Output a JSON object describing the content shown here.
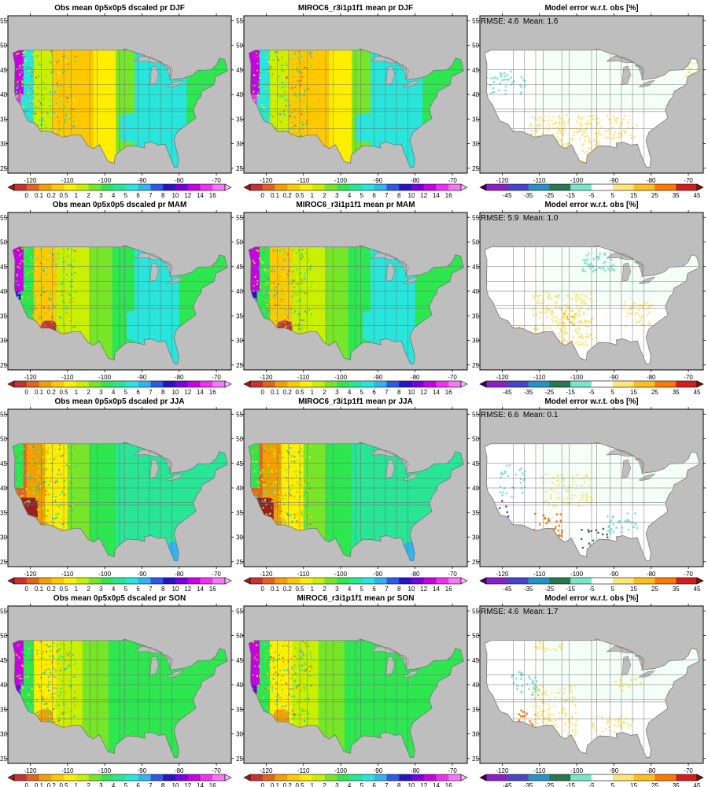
{
  "figure": {
    "seasons": [
      "DJF",
      "MAM",
      "JJA",
      "SON"
    ],
    "columns": [
      {
        "kind": "obs",
        "titles": [
          "Obs mean 0p5x0p5 dscaled pr DJF",
          "Obs mean 0p5x0p5 dscaled pr MAM",
          "Obs mean 0p5x0p5 dscaled pr JJA",
          "Obs mean 0p5x0p5 dscaled pr SON"
        ]
      },
      {
        "kind": "model",
        "titles": [
          "MIROC6_r3i1p1f1 mean pr DJF",
          "MIROC6_r3i1p1f1 mean pr MAM",
          "MIROC6_r3i1p1f1 mean pr JJA",
          "MIROC6_r3i1p1f1 mean pr SON"
        ]
      },
      {
        "kind": "error",
        "titles": [
          "Model error w.r.t. obs [%]",
          "Model error w.r.t. obs [%]",
          "Model error w.r.t. obs [%]",
          "Model error w.r.t. obs [%]"
        ]
      }
    ],
    "error_stats": [
      "RMSE: 4.6  Mean: 1.6",
      "RMSE: 5.9  Mean: 1.0",
      "RMSE: 6.6  Mean: 0.1",
      "RMSE: 4.6  Mean: 1.7"
    ],
    "lon_ticks": [
      -120,
      -110,
      -100,
      -90,
      -80,
      -70
    ],
    "lon_tick_labels": [
      "-120",
      "-110",
      "-100",
      "-90",
      "-80",
      "-70"
    ],
    "lat_ticks": [
      25,
      30,
      35,
      40,
      45,
      50,
      55
    ],
    "lat_tick_labels": [
      "25",
      "30",
      "35",
      "40",
      "45",
      "50",
      "55"
    ],
    "lon_range": [
      -126,
      -66
    ],
    "lat_range": [
      24,
      56
    ],
    "precip_levels": [
      "0",
      "0.1",
      "0.2",
      "0.5",
      "1",
      "2",
      "3",
      "4",
      "5",
      "6",
      "7",
      "8",
      "10",
      "12",
      "14",
      "16"
    ],
    "precip_colors": [
      "#9b1f1f",
      "#c83232",
      "#e0651e",
      "#f2a000",
      "#ffc800",
      "#ffee00",
      "#c8f000",
      "#78e628",
      "#2ee650",
      "#28e696",
      "#28e6dc",
      "#32b4f0",
      "#2d5ae6",
      "#2814c8",
      "#7800e6",
      "#c800e6",
      "#f032f0",
      "#f578f5",
      "#fab4fa"
    ],
    "error_levels": [
      "-45",
      "-35",
      "-25",
      "-15",
      "-5",
      "5",
      "15",
      "25",
      "35",
      "45"
    ],
    "error_colors": [
      "#3c005a",
      "#8c1ec8",
      "#4646c8",
      "#2891c8",
      "#287850",
      "#78e6c8",
      "#ffffff",
      "#ffe678",
      "#ffbe1e",
      "#ff7800",
      "#d21e1e",
      "#781400"
    ],
    "map_colors": {
      "ocean": "#bebebe",
      "border": "#6e6e6e",
      "frame": "#000000"
    }
  }
}
